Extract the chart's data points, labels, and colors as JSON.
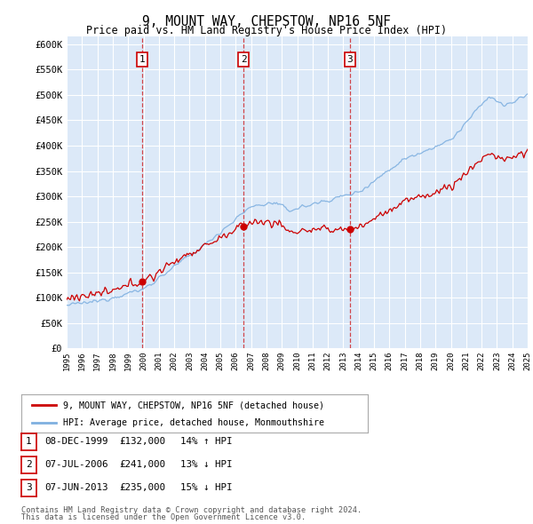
{
  "title": "9, MOUNT WAY, CHEPSTOW, NP16 5NF",
  "subtitle": "Price paid vs. HM Land Registry's House Price Index (HPI)",
  "ylabel_ticks": [
    "£0",
    "£50K",
    "£100K",
    "£150K",
    "£200K",
    "£250K",
    "£300K",
    "£350K",
    "£400K",
    "£450K",
    "£500K",
    "£550K",
    "£600K"
  ],
  "ytick_values": [
    0,
    50000,
    100000,
    150000,
    200000,
    250000,
    300000,
    350000,
    400000,
    450000,
    500000,
    550000,
    600000
  ],
  "ylim": [
    0,
    615000
  ],
  "background_color": "#dce9f8",
  "grid_color": "#ffffff",
  "sale_color": "#cc0000",
  "hpi_color": "#7fb0e0",
  "sale_label": "9, MOUNT WAY, CHEPSTOW, NP16 5NF (detached house)",
  "hpi_label": "HPI: Average price, detached house, Monmouthshire",
  "transactions": [
    {
      "label": "1",
      "date": "08-DEC-1999",
      "price": 132000,
      "x": 1999.92,
      "pct": "14%",
      "dir": "↑"
    },
    {
      "label": "2",
      "date": "07-JUL-2006",
      "price": 241000,
      "x": 2006.52,
      "pct": "13%",
      "dir": "↓"
    },
    {
      "label": "3",
      "date": "07-JUN-2013",
      "price": 235000,
      "x": 2013.44,
      "pct": "15%",
      "dir": "↓"
    }
  ],
  "footer_line1": "Contains HM Land Registry data © Crown copyright and database right 2024.",
  "footer_line2": "This data is licensed under the Open Government Licence v3.0.",
  "xmin": 1995,
  "xmax": 2025
}
